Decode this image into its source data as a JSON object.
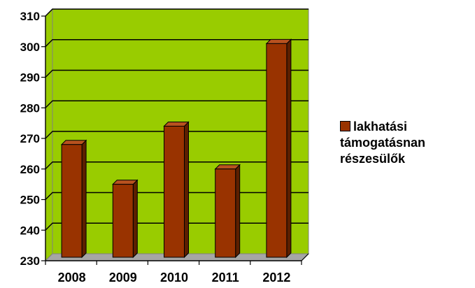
{
  "chart_data": {
    "type": "bar",
    "categories": [
      "2008",
      "2009",
      "2010",
      "2011",
      "2012"
    ],
    "series": [
      {
        "name": "lakhatási támogatásnan részesülők",
        "values": [
          268,
          255,
          274,
          260,
          301
        ]
      }
    ],
    "ylim": [
      230,
      310
    ],
    "yticks": [
      230,
      240,
      250,
      260,
      270,
      280,
      290,
      300,
      310
    ],
    "title": "",
    "xlabel": "",
    "ylabel": "",
    "grid": true,
    "legend_position": "right",
    "style": "3d-column"
  },
  "colors": {
    "plot_background": "#99cc00",
    "floor": "#a6a6a6",
    "bar_front": "#993300",
    "bar_side": "#5c1f00",
    "bar_top": "#b8521f",
    "gridline": "#000000"
  },
  "legend": {
    "lines": [
      "lakhatási",
      "támogatásnan",
      "részesülők"
    ]
  }
}
